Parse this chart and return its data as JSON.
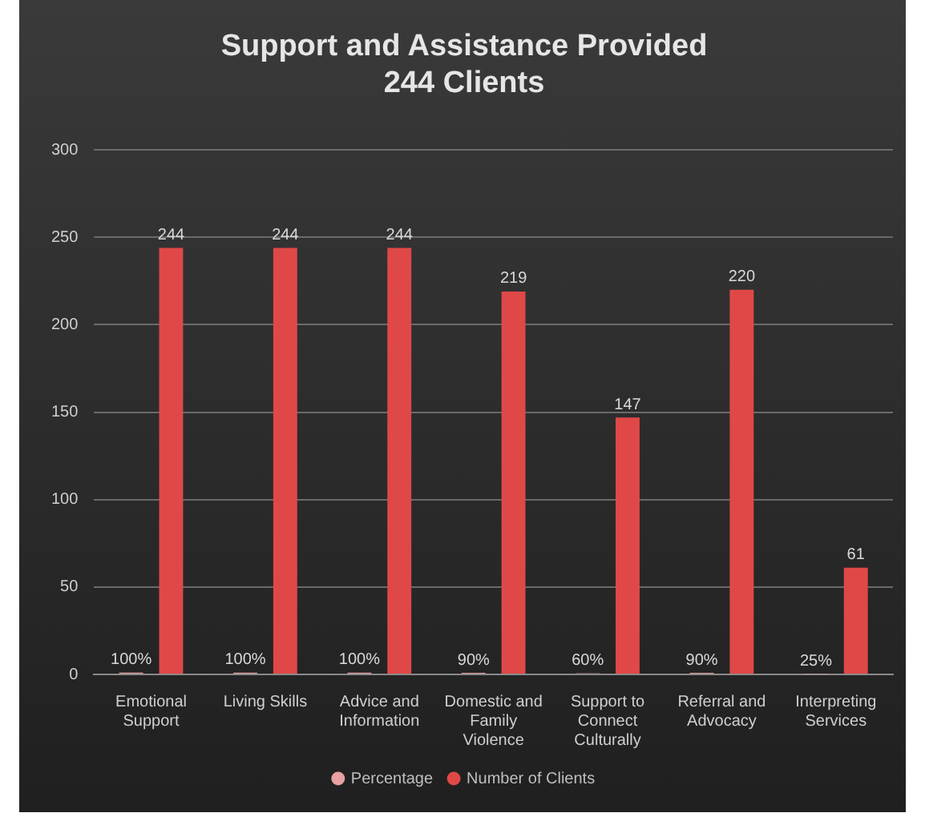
{
  "chart_data": {
    "type": "bar",
    "title": "Support and Assistance Provided\n244 Clients",
    "categories": [
      "Emotional Support",
      "Living Skills",
      "Advice and Information",
      "Domestic and Family Violence",
      "Support to Connect Culturally",
      "Referral and Advocacy",
      "Interpreting Services"
    ],
    "series": [
      {
        "name": "Percentage",
        "color": "#e8a0a0",
        "values": [
          1,
          1,
          1,
          0.9,
          0.6,
          0.9,
          0.25
        ],
        "value_labels": [
          "100%",
          "100%",
          "100%",
          "90%",
          "60%",
          "90%",
          "25%"
        ]
      },
      {
        "name": "Number of Clients",
        "color": "#e04848",
        "values": [
          244,
          244,
          244,
          219,
          147,
          220,
          61
        ],
        "value_labels": [
          "244",
          "244",
          "244",
          "219",
          "147",
          "220",
          "61"
        ]
      }
    ],
    "ylim": [
      0,
      300
    ],
    "yticks": [
      0,
      50,
      100,
      150,
      200,
      250,
      300
    ],
    "grid": "y",
    "legend": "bottom"
  }
}
